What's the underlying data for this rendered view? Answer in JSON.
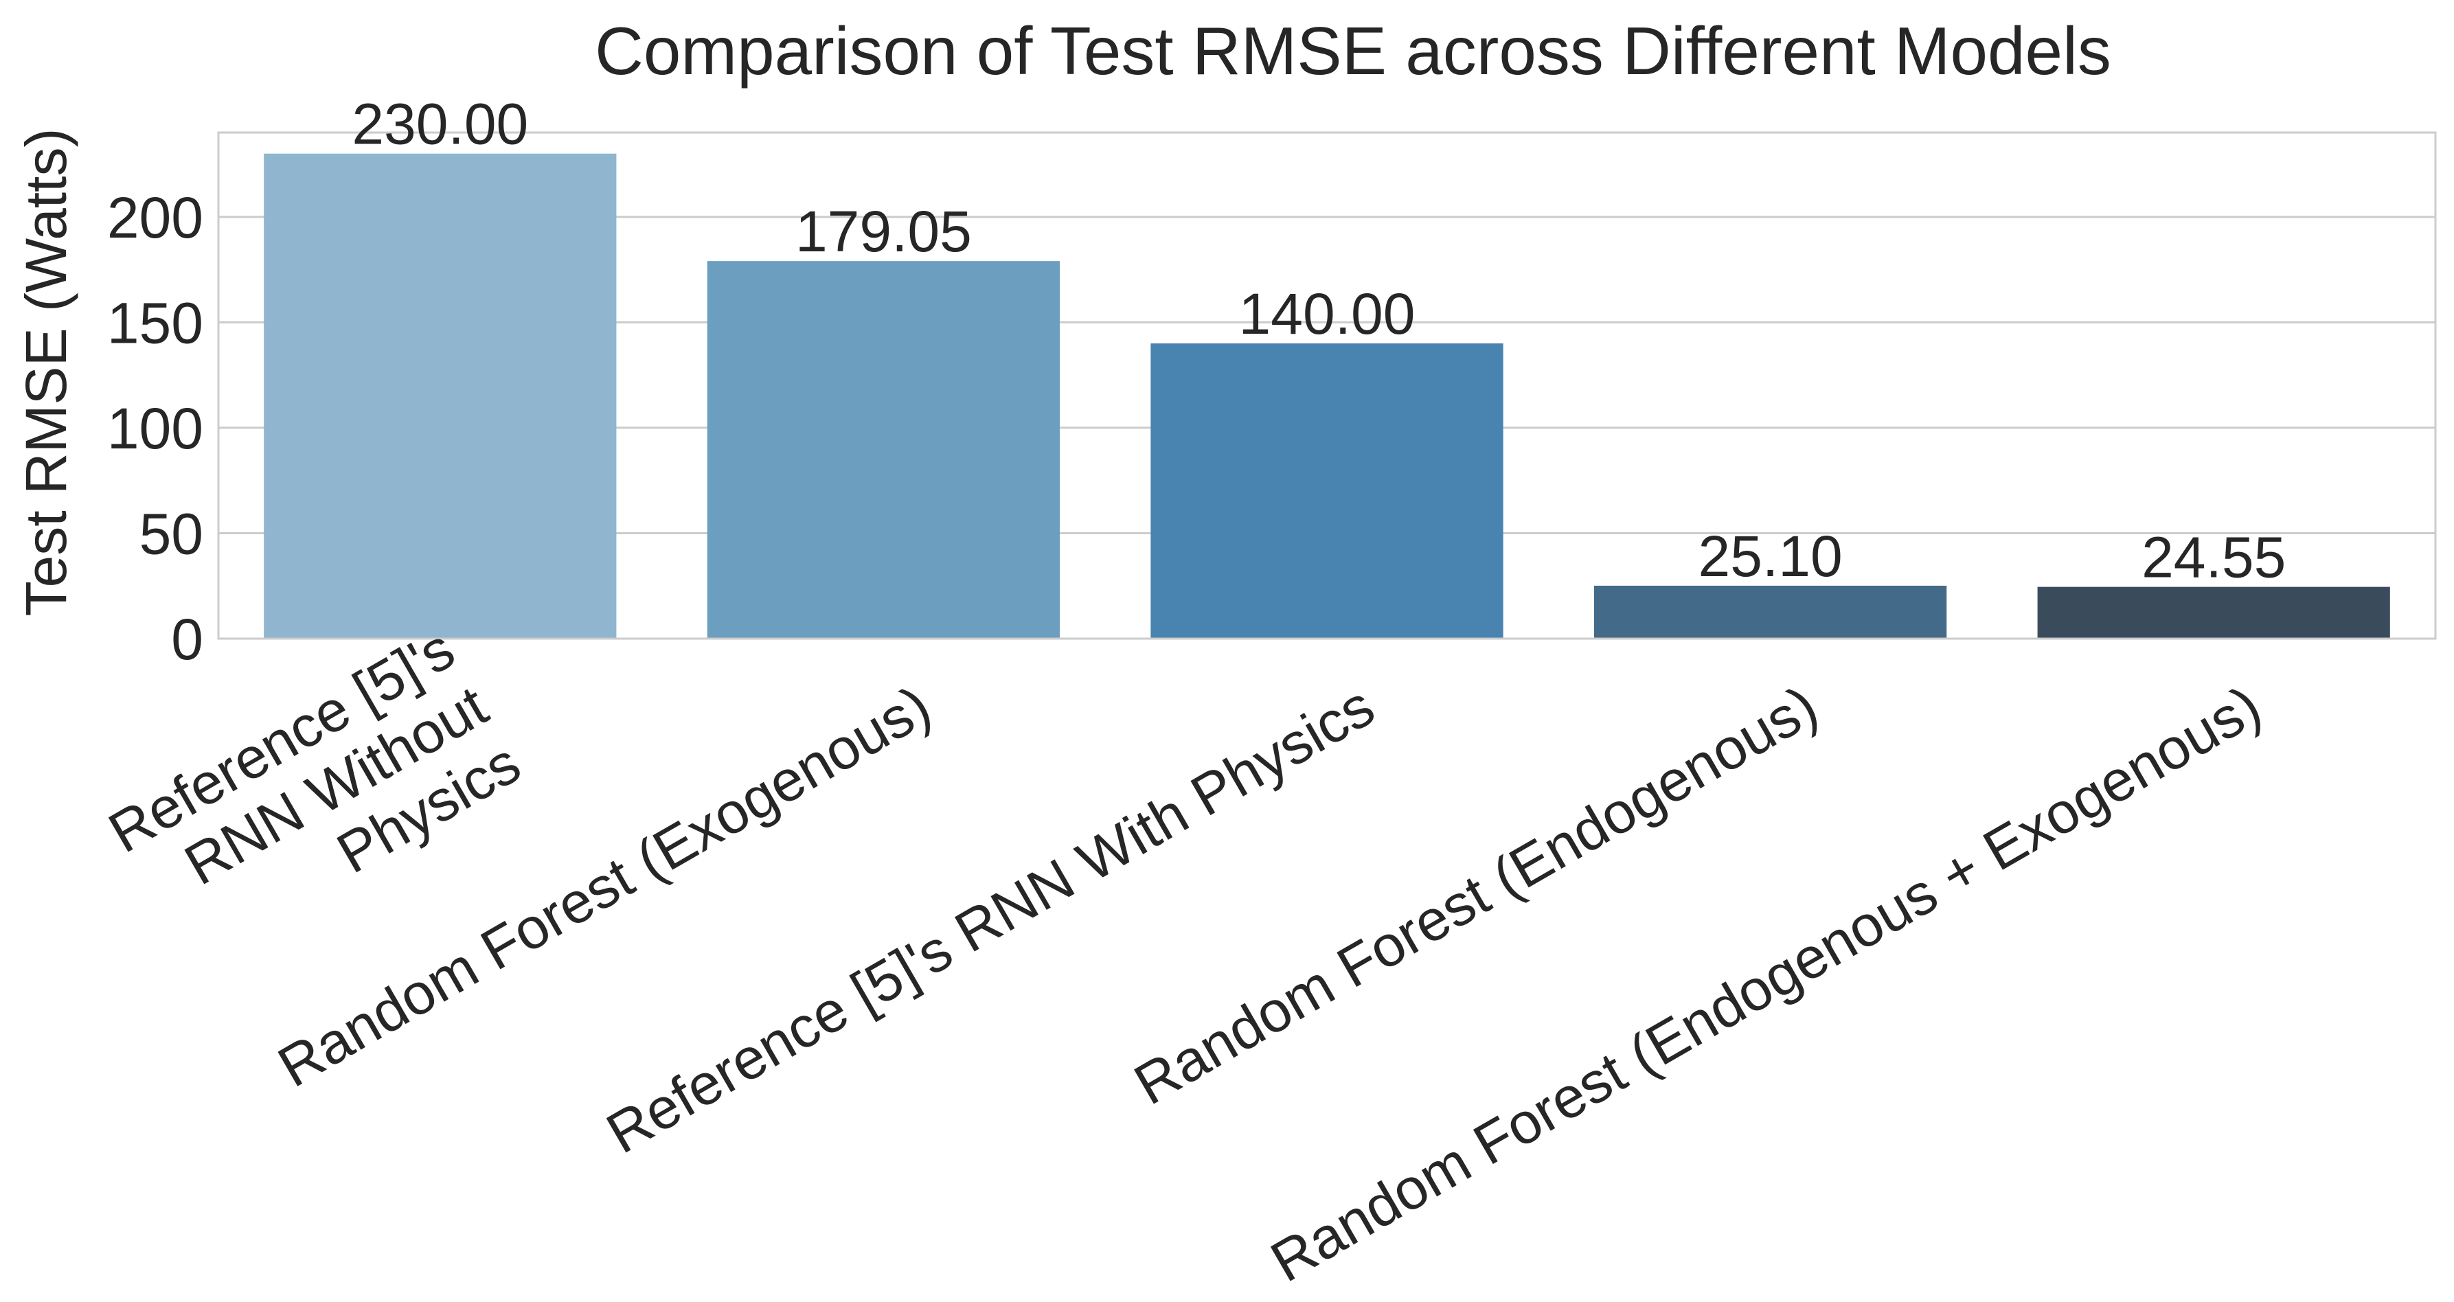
{
  "chart_data": {
    "type": "bar",
    "title": "Comparison of Test RMSE across Different Models",
    "xlabel": "",
    "ylabel": "Test RMSE (Watts)",
    "categories": [
      "Reference [5]'s RNN Without Physics",
      "Random Forest (Exogenous)",
      "Reference [5]'s RNN With Physics",
      "Random Forest (Endogenous)",
      "Random Forest (Endogenous + Exogenous)"
    ],
    "category_label_lines": [
      [
        "Reference [5]'s",
        "RNN Without",
        "Physics"
      ],
      [
        "Random Forest (Exogenous)"
      ],
      [
        "Reference [5]'s RNN With Physics"
      ],
      [
        "Random Forest (Endogenous)"
      ],
      [
        "Random Forest (Endogenous + Exogenous)"
      ]
    ],
    "values": [
      230.0,
      179.05,
      140.0,
      25.1,
      24.55
    ],
    "value_labels": [
      "230.00",
      "179.05",
      "140.00",
      "25.10",
      "24.55"
    ],
    "bar_colors": [
      "#90b5cf",
      "#6b9ebf",
      "#4983b0",
      "#436a88",
      "#3a4c5c"
    ],
    "ylim": [
      0,
      240
    ],
    "yticks": [
      0,
      50,
      100,
      150,
      200
    ],
    "ytick_labels": [
      "0",
      "50",
      "100",
      "150",
      "200"
    ],
    "grid": true,
    "grid_axis": "y",
    "legend": "none"
  }
}
